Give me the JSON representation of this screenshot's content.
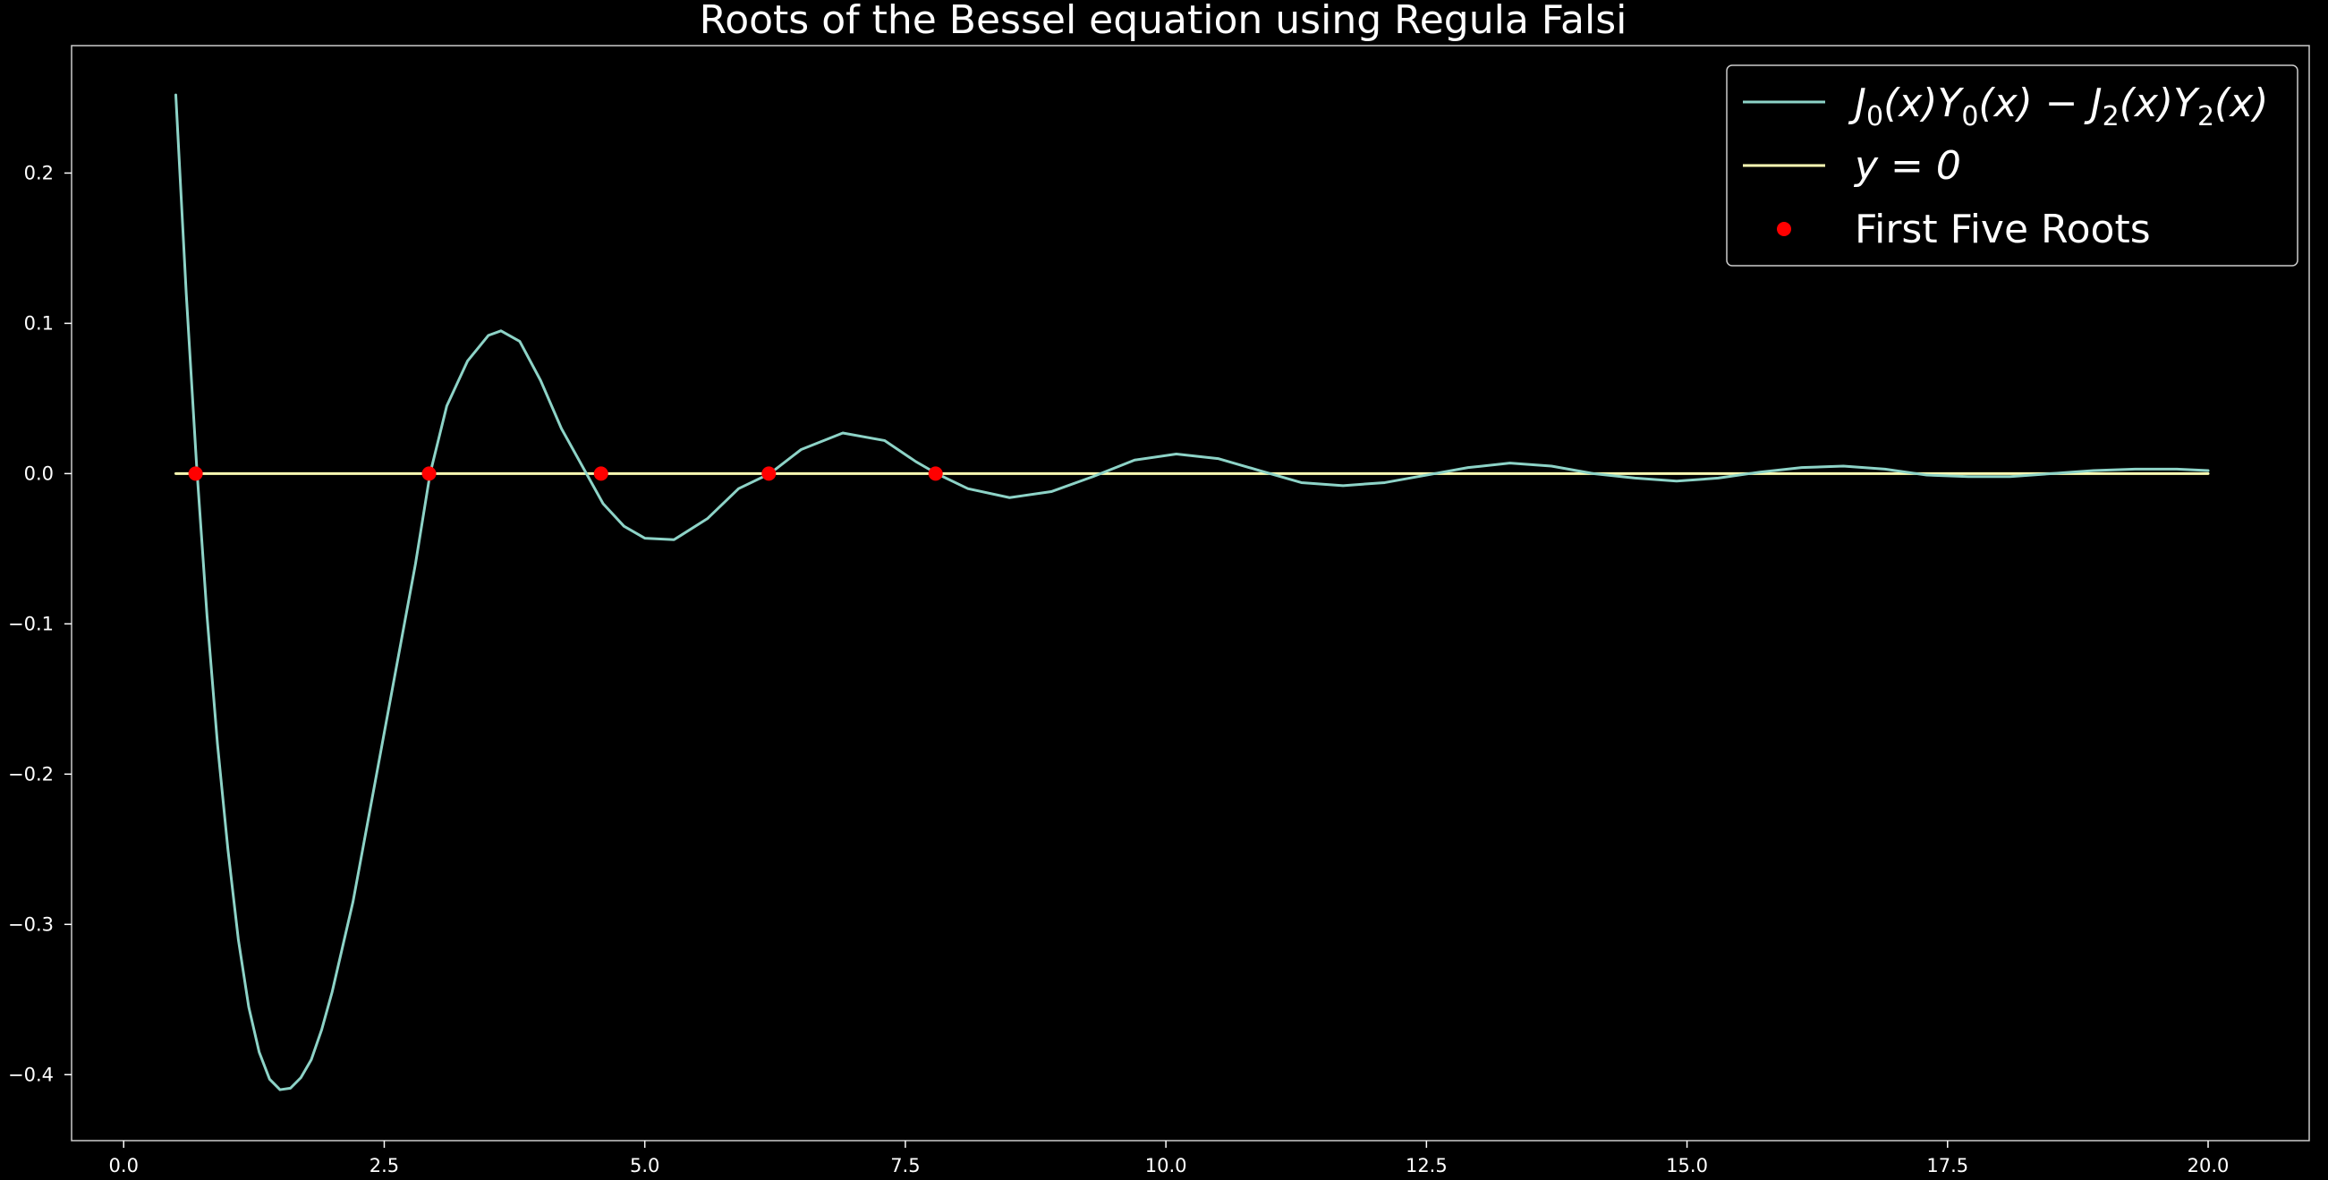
{
  "chart_data": {
    "type": "line",
    "title": "Roots of the Bessel equation using Regula Falsi",
    "xlabel": "",
    "ylabel": "",
    "xlim": [
      -0.5,
      20.97
    ],
    "ylim": [
      -0.4439,
      0.2848
    ],
    "grid": false,
    "background": "#000000",
    "x_ticks": [
      0.0,
      2.5,
      5.0,
      7.5,
      10.0,
      12.5,
      15.0,
      17.5,
      20.0
    ],
    "x_tick_labels": [
      "0.0",
      "2.5",
      "5.0",
      "7.5",
      "10.0",
      "12.5",
      "15.0",
      "17.5",
      "20.0"
    ],
    "y_ticks": [
      -0.4,
      -0.3,
      -0.2,
      -0.1,
      0.0,
      0.1,
      0.2
    ],
    "y_tick_labels": [
      "−0.4",
      "−0.3",
      "−0.2",
      "−0.1",
      "0.0",
      "0.1",
      "0.2"
    ],
    "legend_position": "upper-right",
    "series": [
      {
        "name": "J0(x)Y0(x) − J2(x)Y2(x)",
        "kind": "line",
        "color": "#8dd3c7",
        "x_range": [
          0.5,
          20.0
        ],
        "x": [
          0.5,
          0.6,
          0.7,
          0.8,
          0.9,
          1.0,
          1.1,
          1.2,
          1.3,
          1.4,
          1.5,
          1.6,
          1.7,
          1.8,
          1.9,
          2.0,
          2.2,
          2.4,
          2.6,
          2.8,
          2.94,
          3.1,
          3.3,
          3.5,
          3.62,
          3.8,
          4.0,
          4.2,
          4.4,
          4.6,
          4.8,
          5.0,
          5.28,
          5.6,
          5.9,
          6.2,
          6.5,
          6.9,
          7.3,
          7.6,
          7.8,
          8.1,
          8.5,
          8.9,
          9.3,
          9.7,
          10.1,
          10.5,
          10.9,
          11.3,
          11.7,
          12.1,
          12.5,
          12.9,
          13.3,
          13.7,
          14.1,
          14.5,
          14.9,
          15.3,
          15.7,
          16.1,
          16.5,
          16.9,
          17.3,
          17.7,
          18.1,
          18.5,
          18.9,
          19.3,
          19.7,
          20.0
        ],
        "y": [
          0.252,
          0.12,
          0.005,
          -0.095,
          -0.18,
          -0.25,
          -0.31,
          -0.355,
          -0.385,
          -0.403,
          -0.41,
          -0.409,
          -0.402,
          -0.39,
          -0.37,
          -0.345,
          -0.285,
          -0.21,
          -0.135,
          -0.06,
          0.0,
          0.045,
          0.075,
          0.092,
          0.095,
          0.088,
          0.062,
          0.03,
          0.005,
          -0.02,
          -0.035,
          -0.043,
          -0.044,
          -0.03,
          -0.01,
          0.0,
          0.016,
          0.027,
          0.022,
          0.008,
          0.0,
          -0.01,
          -0.016,
          -0.012,
          -0.002,
          0.009,
          0.013,
          0.01,
          0.002,
          -0.006,
          -0.008,
          -0.006,
          -0.001,
          0.004,
          0.007,
          0.005,
          0.0,
          -0.003,
          -0.005,
          -0.003,
          0.001,
          0.004,
          0.005,
          0.003,
          -0.001,
          -0.002,
          -0.002,
          0.0,
          0.002,
          0.003,
          0.003,
          0.002
        ]
      },
      {
        "name": "y = 0",
        "kind": "line",
        "color": "#feffb3",
        "x": [
          0.5,
          20.0
        ],
        "y": [
          0.0,
          0.0
        ]
      },
      {
        "name": "First Five Roots",
        "kind": "scatter",
        "color": "#ff0000",
        "x": [
          0.69,
          2.93,
          4.58,
          6.19,
          7.79
        ],
        "y": [
          0.0,
          0.0,
          0.0,
          0.0,
          0.0
        ]
      }
    ],
    "legend": {
      "entries": [
        {
          "label_parts": [
            "J",
            "0",
            "(x)Y",
            "0",
            "(x) − J",
            "2",
            "(x)Y",
            "2",
            "(x)"
          ]
        },
        {
          "label": "y = 0"
        },
        {
          "label": "First Five Roots"
        }
      ]
    }
  }
}
